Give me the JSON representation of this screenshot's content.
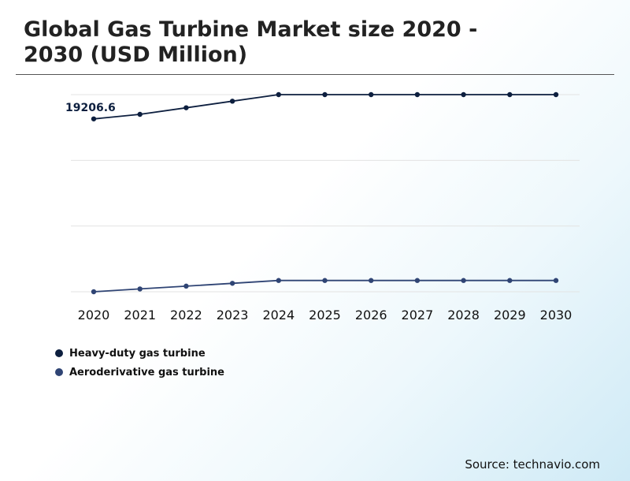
{
  "header": {
    "title": "Global Gas Turbine Market size 2020 - 2030 (USD Million)"
  },
  "source": "Source: technavio.com",
  "chart_data": {
    "type": "line",
    "title": "Global Gas Turbine Market size 2020 - 2030 (USD Million)",
    "x": [
      "2020",
      "2021",
      "2022",
      "2023",
      "2024",
      "2025",
      "2026",
      "2027",
      "2028",
      "2029",
      "2030"
    ],
    "xlabel": "",
    "ylabel": "",
    "series": [
      {
        "name": "Heavy-duty gas turbine",
        "color": "#0d1f3f",
        "values": [
          19206.6,
          19450,
          19800,
          20150,
          20500,
          20500,
          20500,
          20500,
          20500,
          20500,
          20500
        ],
        "data_labels": [
          {
            "index": 0,
            "text": "19206.6"
          }
        ]
      },
      {
        "name": "Aeroderivative gas turbine",
        "color": "#2f4474",
        "values": [
          10000,
          10150,
          10300,
          10450,
          10600,
          10600,
          10600,
          10600,
          10600,
          10600,
          10600
        ]
      }
    ],
    "ylim": [
      10000,
      20500
    ],
    "grid": true,
    "gridline_count": 4,
    "y_ticks_shown": false,
    "legend_position": "bottom-left"
  }
}
